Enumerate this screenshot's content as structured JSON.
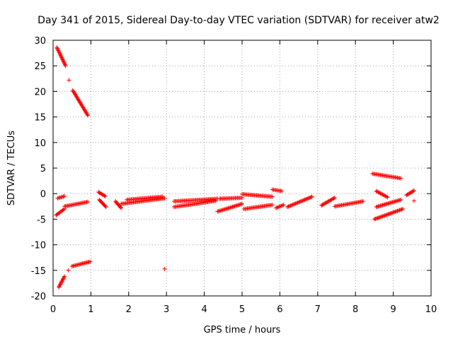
{
  "chart_data": {
    "type": "scatter",
    "title": "Day 341 of 2015, Sidereal Day-to-day VTEC variation (SDTVAR) for receiver atw2",
    "xlabel": "GPS time / hours",
    "ylabel": "SDTVAR / TECUs",
    "xlim": [
      0,
      10
    ],
    "ylim": [
      -20,
      30
    ],
    "xticks": [
      0,
      1,
      2,
      3,
      4,
      5,
      6,
      7,
      8,
      9,
      10
    ],
    "yticks": [
      -20,
      -15,
      -10,
      -5,
      0,
      5,
      10,
      15,
      20,
      25,
      30
    ],
    "grid": true,
    "legend": "none",
    "marker": "plus",
    "color": "#ff0000",
    "segments": [
      {
        "x": [
          0.1,
          0.33
        ],
        "y": [
          28.6,
          25.0
        ]
      },
      {
        "x": [
          0.52,
          0.92
        ],
        "y": [
          20.2,
          15.3
        ]
      },
      {
        "x": [
          0.12,
          0.3
        ],
        "y": [
          -0.9,
          -0.5
        ]
      },
      {
        "x": [
          0.08,
          0.3
        ],
        "y": [
          -4.2,
          -3.0
        ]
      },
      {
        "x": [
          0.3,
          0.92
        ],
        "y": [
          -2.5,
          -1.6
        ]
      },
      {
        "x": [
          0.15,
          0.3
        ],
        "y": [
          -18.3,
          -16.2
        ]
      },
      {
        "x": [
          0.5,
          0.98
        ],
        "y": [
          -14.2,
          -13.3
        ]
      },
      {
        "x": [
          1.2,
          1.38
        ],
        "y": [
          0.3,
          -0.5
        ]
      },
      {
        "x": [
          1.22,
          1.4
        ],
        "y": [
          -1.2,
          -2.6
        ]
      },
      {
        "x": [
          1.65,
          1.8
        ],
        "y": [
          -1.5,
          -2.8
        ]
      },
      {
        "x": [
          1.8,
          2.95
        ],
        "y": [
          -2.0,
          -0.9
        ]
      },
      {
        "x": [
          1.95,
          2.9
        ],
        "y": [
          -1.2,
          -0.6
        ]
      },
      {
        "x": [
          3.2,
          4.35
        ],
        "y": [
          -1.5,
          -1.0
        ]
      },
      {
        "x": [
          3.2,
          4.3
        ],
        "y": [
          -2.6,
          -1.4
        ]
      },
      {
        "x": [
          4.35,
          5.0
        ],
        "y": [
          -3.5,
          -2.0
        ]
      },
      {
        "x": [
          4.4,
          5.0
        ],
        "y": [
          -1.0,
          -0.8
        ]
      },
      {
        "x": [
          5.0,
          5.8
        ],
        "y": [
          -0.1,
          -0.6
        ]
      },
      {
        "x": [
          5.05,
          5.8
        ],
        "y": [
          -3.0,
          -2.2
        ]
      },
      {
        "x": [
          5.8,
          6.05
        ],
        "y": [
          0.8,
          0.5
        ]
      },
      {
        "x": [
          5.9,
          6.1
        ],
        "y": [
          -2.8,
          -2.2
        ]
      },
      {
        "x": [
          6.2,
          6.85
        ],
        "y": [
          -2.6,
          -0.6
        ]
      },
      {
        "x": [
          7.1,
          7.45
        ],
        "y": [
          -2.3,
          -0.8
        ]
      },
      {
        "x": [
          7.45,
          8.2
        ],
        "y": [
          -2.5,
          -1.5
        ]
      },
      {
        "x": [
          8.45,
          9.2
        ],
        "y": [
          3.9,
          3.0
        ]
      },
      {
        "x": [
          8.55,
          8.85
        ],
        "y": [
          0.5,
          -0.7
        ]
      },
      {
        "x": [
          8.5,
          9.25
        ],
        "y": [
          -5.0,
          -3.0
        ]
      },
      {
        "x": [
          8.55,
          9.2
        ],
        "y": [
          -2.6,
          -1.2
        ]
      },
      {
        "x": [
          9.35,
          9.55
        ],
        "y": [
          -0.3,
          0.6
        ]
      }
    ],
    "points": [
      {
        "x": 0.42,
        "y": 22.2
      },
      {
        "x": 0.4,
        "y": -15.0
      },
      {
        "x": 2.95,
        "y": -14.7
      },
      {
        "x": 9.55,
        "y": -1.4
      }
    ]
  }
}
